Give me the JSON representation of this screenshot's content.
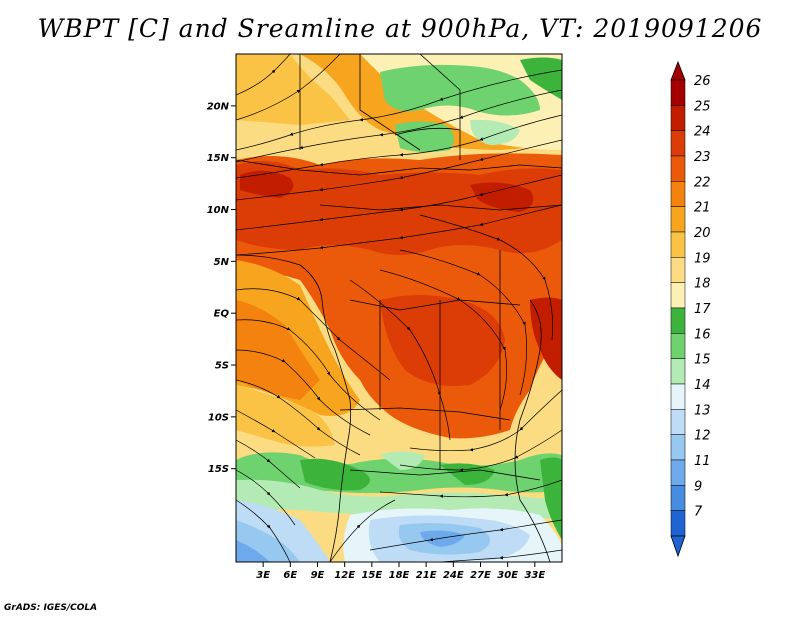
{
  "title": "WBPT [C] and Sreamline at 900hPa, VT: 2019091206",
  "credit": "GrADS: IGES/COLA",
  "map": {
    "variable": "WBPT",
    "units": "C",
    "level": "900hPa",
    "valid_time": "2019091206",
    "lon_range": [
      0,
      36
    ],
    "lat_range": [
      -24,
      25
    ],
    "lat_ticks": [
      {
        "value": 20,
        "label": "20N"
      },
      {
        "value": 15,
        "label": "15N"
      },
      {
        "value": 10,
        "label": "10N"
      },
      {
        "value": 5,
        "label": "5N"
      },
      {
        "value": 0,
        "label": "EQ"
      },
      {
        "value": -5,
        "label": "5S"
      },
      {
        "value": -10,
        "label": "10S"
      },
      {
        "value": -15,
        "label": "15S"
      }
    ],
    "lon_ticks": [
      {
        "value": 3,
        "label": "3E"
      },
      {
        "value": 6,
        "label": "6E"
      },
      {
        "value": 9,
        "label": "9E"
      },
      {
        "value": 12,
        "label": "12E"
      },
      {
        "value": 15,
        "label": "15E"
      },
      {
        "value": 18,
        "label": "18E"
      },
      {
        "value": 21,
        "label": "21E"
      },
      {
        "value": 24,
        "label": "24E"
      },
      {
        "value": 27,
        "label": "27E"
      },
      {
        "value": 30,
        "label": "30E"
      },
      {
        "value": 33,
        "label": "33E"
      }
    ]
  },
  "colorbar": {
    "levels": [
      {
        "label": "26",
        "color": "#a50000"
      },
      {
        "label": "25",
        "color": "#c31d00"
      },
      {
        "label": "24",
        "color": "#dc3c06"
      },
      {
        "label": "23",
        "color": "#eb5a0a"
      },
      {
        "label": "22",
        "color": "#f4820f"
      },
      {
        "label": "21",
        "color": "#f7a51e"
      },
      {
        "label": "20",
        "color": "#fac345"
      },
      {
        "label": "19",
        "color": "#fcdc82"
      },
      {
        "label": "18",
        "color": "#fdf0b4"
      },
      {
        "label": "17",
        "color": "#3cb43c"
      },
      {
        "label": "16",
        "color": "#6ed26e"
      },
      {
        "label": "15",
        "color": "#b4ebb4"
      },
      {
        "label": "14",
        "color": "#e6f5fa"
      },
      {
        "label": "13",
        "color": "#bedcf5"
      },
      {
        "label": "12",
        "color": "#96c8f0"
      },
      {
        "label": "11",
        "color": "#6eaaeb"
      },
      {
        "label": "9",
        "color": "#468ce1"
      },
      {
        "label": "7",
        "color": "#1e64d2"
      }
    ],
    "bottom_color": "#1e64d2",
    "top_color": "#a50000"
  }
}
